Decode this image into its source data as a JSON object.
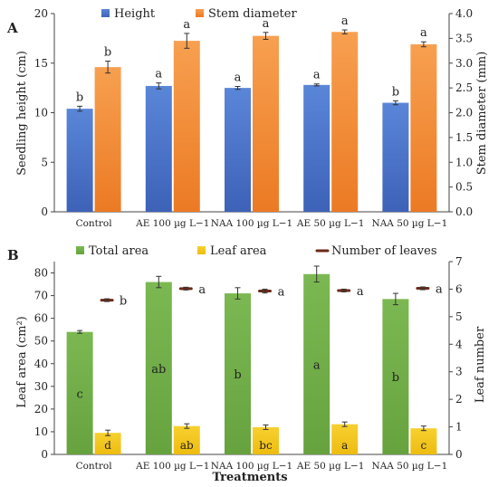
{
  "colors": {
    "height": "#4a72c8",
    "stem": "#f08a38",
    "total": "#72ad48",
    "leaf": "#f2c418",
    "leaves": "#6b2a1a",
    "axis": "#444444"
  },
  "chart_data": [
    {
      "panel": "A",
      "type": "bar",
      "categories": [
        "Control",
        "AE 100 µg L−1",
        "NAA 100 µg L−1",
        "AE 50 µg L−1",
        "NAA 50 µg L−1"
      ],
      "ylabel": "Seedling height (cm)",
      "y2label": "Stem diameter (mm)",
      "xlabel": "",
      "ylim": [
        0,
        20
      ],
      "yticks": [
        "0",
        "5",
        "10",
        "15",
        "20"
      ],
      "y2lim": [
        0,
        4
      ],
      "y2ticks": [
        "0.0",
        "0.5",
        "1.0",
        "1.5",
        "2.0",
        "2.5",
        "3.0",
        "3.5",
        "4.0"
      ],
      "legend": [
        "Height",
        "Stem diameter"
      ],
      "legend_position": "top",
      "grid": false,
      "series": [
        {
          "name": "Height",
          "axis": "left",
          "values": [
            10.4,
            12.7,
            12.5,
            12.8,
            11.0
          ],
          "errors": [
            0.25,
            0.3,
            0.15,
            0.1,
            0.2
          ],
          "letters": [
            "b",
            "a",
            "a",
            "a",
            "b"
          ]
        },
        {
          "name": "Stem diameter",
          "axis": "right",
          "values": [
            2.92,
            3.45,
            3.55,
            3.63,
            3.38
          ],
          "errors": [
            0.12,
            0.15,
            0.07,
            0.04,
            0.05
          ],
          "letters": [
            "b",
            "a",
            "a",
            "a",
            "a"
          ]
        }
      ]
    },
    {
      "panel": "B",
      "type": "bar",
      "categories": [
        "Control",
        "AE 100 µg L−1",
        "NAA 100 µg L−1",
        "AE 50 µg L−1",
        "NAA 50 µg L−1"
      ],
      "xlabel": "Treatments",
      "ylabel": "Leaf area (cm²)",
      "y2label": "Leaf number",
      "ylim": [
        0,
        85
      ],
      "yticks": [
        "0",
        "10",
        "20",
        "30",
        "40",
        "50",
        "60",
        "70",
        "80"
      ],
      "y2lim": [
        0,
        7
      ],
      "y2ticks": [
        "0",
        "1",
        "2",
        "3",
        "4",
        "5",
        "6",
        "7"
      ],
      "legend": [
        "Total area",
        "Leaf area",
        "Number of leaves"
      ],
      "legend_position": "top",
      "grid": false,
      "series": [
        {
          "name": "Total area",
          "axis": "left",
          "values": [
            54.0,
            76.0,
            71.0,
            79.5,
            68.5
          ],
          "errors": [
            0.6,
            2.5,
            2.5,
            3.5,
            2.5
          ],
          "letters": [
            "c",
            "ab",
            "b",
            "a",
            "b"
          ]
        },
        {
          "name": "Leaf area",
          "axis": "left",
          "values": [
            9.5,
            12.5,
            12.0,
            13.3,
            11.5
          ],
          "errors": [
            1.2,
            1.0,
            1.0,
            1.0,
            1.0
          ],
          "letters": [
            "d",
            "ab",
            "bc",
            "a",
            "c"
          ]
        },
        {
          "name": "Number of leaves",
          "axis": "right",
          "values": [
            5.6,
            6.02,
            5.93,
            5.95,
            6.03
          ],
          "errors": [
            0.05,
            0.05,
            0.07,
            0.05,
            0.05
          ],
          "letters": [
            "b",
            "a",
            "a",
            "a",
            "a"
          ]
        }
      ]
    }
  ]
}
